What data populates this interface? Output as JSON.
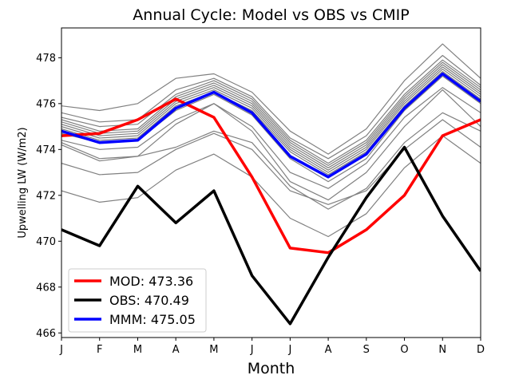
{
  "chart_data": {
    "type": "line",
    "title": "Annual Cycle: Model vs OBS vs CMIP",
    "xlabel": "Month",
    "ylabel": "Upwelling LW (W/m2)",
    "categories": [
      "J",
      "F",
      "M",
      "A",
      "M",
      "J",
      "J",
      "A",
      "S",
      "O",
      "N",
      "D"
    ],
    "ylim": [
      465.8,
      479.3
    ],
    "yticks": [
      466,
      468,
      470,
      472,
      474,
      476,
      478
    ],
    "ytick_labels": [
      "466",
      "468",
      "470",
      "472",
      "474",
      "476",
      "478"
    ],
    "legend_position": "lower-left",
    "series": [
      {
        "name": "MOD",
        "legend_label": "MOD: 473.36",
        "color": "#ff0000",
        "width": "thick",
        "values": [
          474.6,
          474.7,
          475.3,
          476.2,
          475.4,
          472.8,
          469.7,
          469.5,
          470.5,
          472.0,
          474.6,
          475.3
        ]
      },
      {
        "name": "OBS",
        "legend_label": "OBS: 470.49",
        "color": "#000000",
        "width": "thick",
        "values": [
          470.5,
          469.8,
          472.4,
          470.8,
          472.2,
          468.5,
          466.4,
          469.3,
          471.9,
          474.1,
          471.1,
          468.7
        ]
      },
      {
        "name": "MMM",
        "legend_label": "MMM: 475.05",
        "color": "#0000ff",
        "width": "thick",
        "values": [
          474.8,
          474.3,
          474.4,
          475.8,
          476.5,
          475.6,
          473.7,
          472.8,
          473.8,
          475.8,
          477.3,
          476.1
        ]
      }
    ],
    "cmip_models": {
      "color": "#808080",
      "members": [
        [
          475.9,
          475.7,
          476.0,
          477.1,
          477.3,
          476.5,
          474.8,
          473.8,
          474.9,
          477.0,
          478.6,
          477.1
        ],
        [
          475.6,
          475.2,
          475.3,
          476.6,
          477.1,
          476.3,
          474.5,
          473.6,
          474.6,
          476.6,
          478.1,
          476.8
        ],
        [
          475.4,
          475.0,
          475.1,
          476.4,
          477.0,
          476.2,
          474.4,
          473.4,
          474.4,
          476.4,
          477.9,
          476.7
        ],
        [
          475.3,
          474.8,
          474.9,
          476.3,
          476.9,
          476.1,
          474.3,
          473.3,
          474.3,
          476.3,
          477.8,
          476.6
        ],
        [
          475.2,
          474.7,
          474.8,
          476.2,
          476.8,
          476.0,
          474.2,
          473.2,
          474.2,
          476.2,
          477.7,
          476.5
        ],
        [
          475.1,
          474.6,
          474.7,
          476.1,
          476.7,
          475.9,
          474.1,
          473.1,
          474.1,
          476.1,
          477.6,
          476.4
        ],
        [
          475.0,
          474.5,
          474.6,
          476.0,
          476.6,
          475.8,
          474.0,
          473.0,
          474.0,
          476.0,
          477.5,
          476.3
        ],
        [
          474.9,
          474.4,
          474.5,
          475.9,
          476.5,
          475.7,
          473.9,
          472.9,
          473.9,
          475.9,
          477.4,
          476.2
        ],
        [
          474.7,
          474.3,
          474.4,
          475.7,
          476.4,
          475.5,
          473.6,
          472.6,
          473.6,
          475.7,
          477.2,
          476.0
        ],
        [
          474.4,
          474.0,
          474.1,
          475.3,
          476.0,
          475.0,
          473.0,
          472.3,
          473.4,
          475.4,
          476.7,
          475.6
        ],
        [
          474.3,
          473.6,
          473.7,
          475.1,
          476.0,
          474.8,
          472.6,
          471.8,
          473.0,
          475.0,
          476.6,
          475.0
        ],
        [
          474.2,
          473.5,
          473.7,
          474.1,
          474.8,
          474.3,
          472.4,
          471.4,
          472.3,
          474.3,
          475.6,
          474.8
        ],
        [
          473.4,
          472.9,
          473.0,
          474.0,
          474.7,
          474.0,
          472.2,
          471.6,
          472.2,
          474.0,
          475.3,
          474.1
        ],
        [
          472.2,
          471.7,
          471.9,
          473.1,
          473.8,
          472.8,
          471.0,
          470.2,
          471.2,
          473.2,
          474.6,
          473.4
        ]
      ]
    }
  }
}
